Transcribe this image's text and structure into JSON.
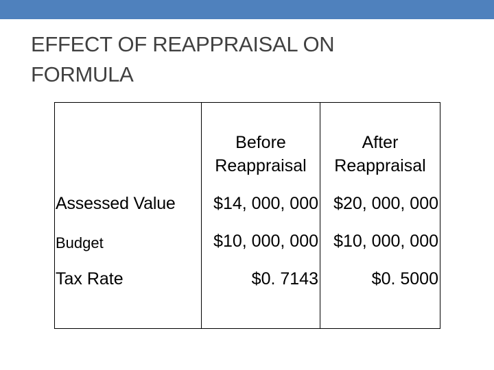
{
  "slide": {
    "title_line1": "EFFECT OF REAPPRAISAL ON",
    "title_line2": "FORMULA",
    "accent_color": "#4f81bd"
  },
  "table": {
    "headers": {
      "before_line1": "Before",
      "before_line2": "Reappraisal",
      "after_line1": "After",
      "after_line2": "Reappraisal"
    },
    "rows": [
      {
        "label": "Assessed Value",
        "before": "$14, 000, 000",
        "after": "$20, 000, 000"
      },
      {
        "label": "Budget",
        "before": "$10, 000, 000",
        "after": "$10, 000, 000"
      },
      {
        "label": "Tax Rate",
        "before": "$0. 7143",
        "after": "$0. 5000"
      }
    ]
  }
}
